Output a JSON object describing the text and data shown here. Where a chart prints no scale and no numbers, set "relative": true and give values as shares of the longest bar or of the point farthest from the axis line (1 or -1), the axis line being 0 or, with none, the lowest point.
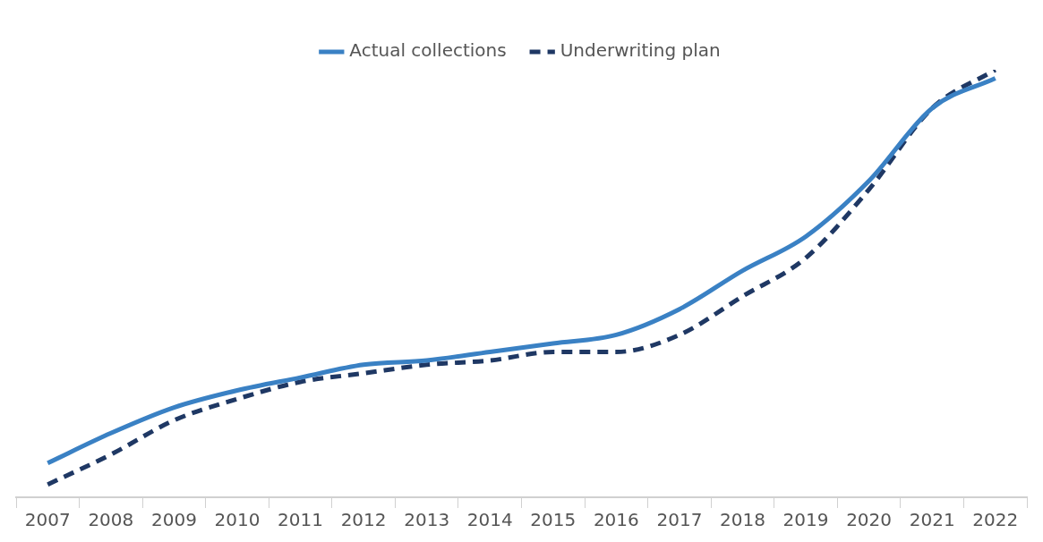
{
  "chart_data": {
    "type": "line",
    "relative": true,
    "legend": "top",
    "categories": [
      "2007",
      "2008",
      "2009",
      "2010",
      "2011",
      "2012",
      "2013",
      "2014",
      "2015",
      "2016",
      "2017",
      "2018",
      "2019",
      "2020",
      "2021",
      "2022"
    ],
    "series": [
      {
        "name": "Actual collections",
        "color": "#3a81c4",
        "line_style": "solid",
        "values": [
          0.08,
          0.15,
          0.21,
          0.25,
          0.28,
          0.31,
          0.32,
          0.34,
          0.36,
          0.38,
          0.44,
          0.53,
          0.61,
          0.74,
          0.91,
          0.98
        ]
      },
      {
        "name": "Underwriting plan",
        "color": "#1f3864",
        "line_style": "dashed",
        "values": [
          0.03,
          0.1,
          0.18,
          0.23,
          0.27,
          0.29,
          0.31,
          0.32,
          0.34,
          0.34,
          0.38,
          0.47,
          0.56,
          0.72,
          0.91,
          1.0
        ]
      }
    ]
  }
}
